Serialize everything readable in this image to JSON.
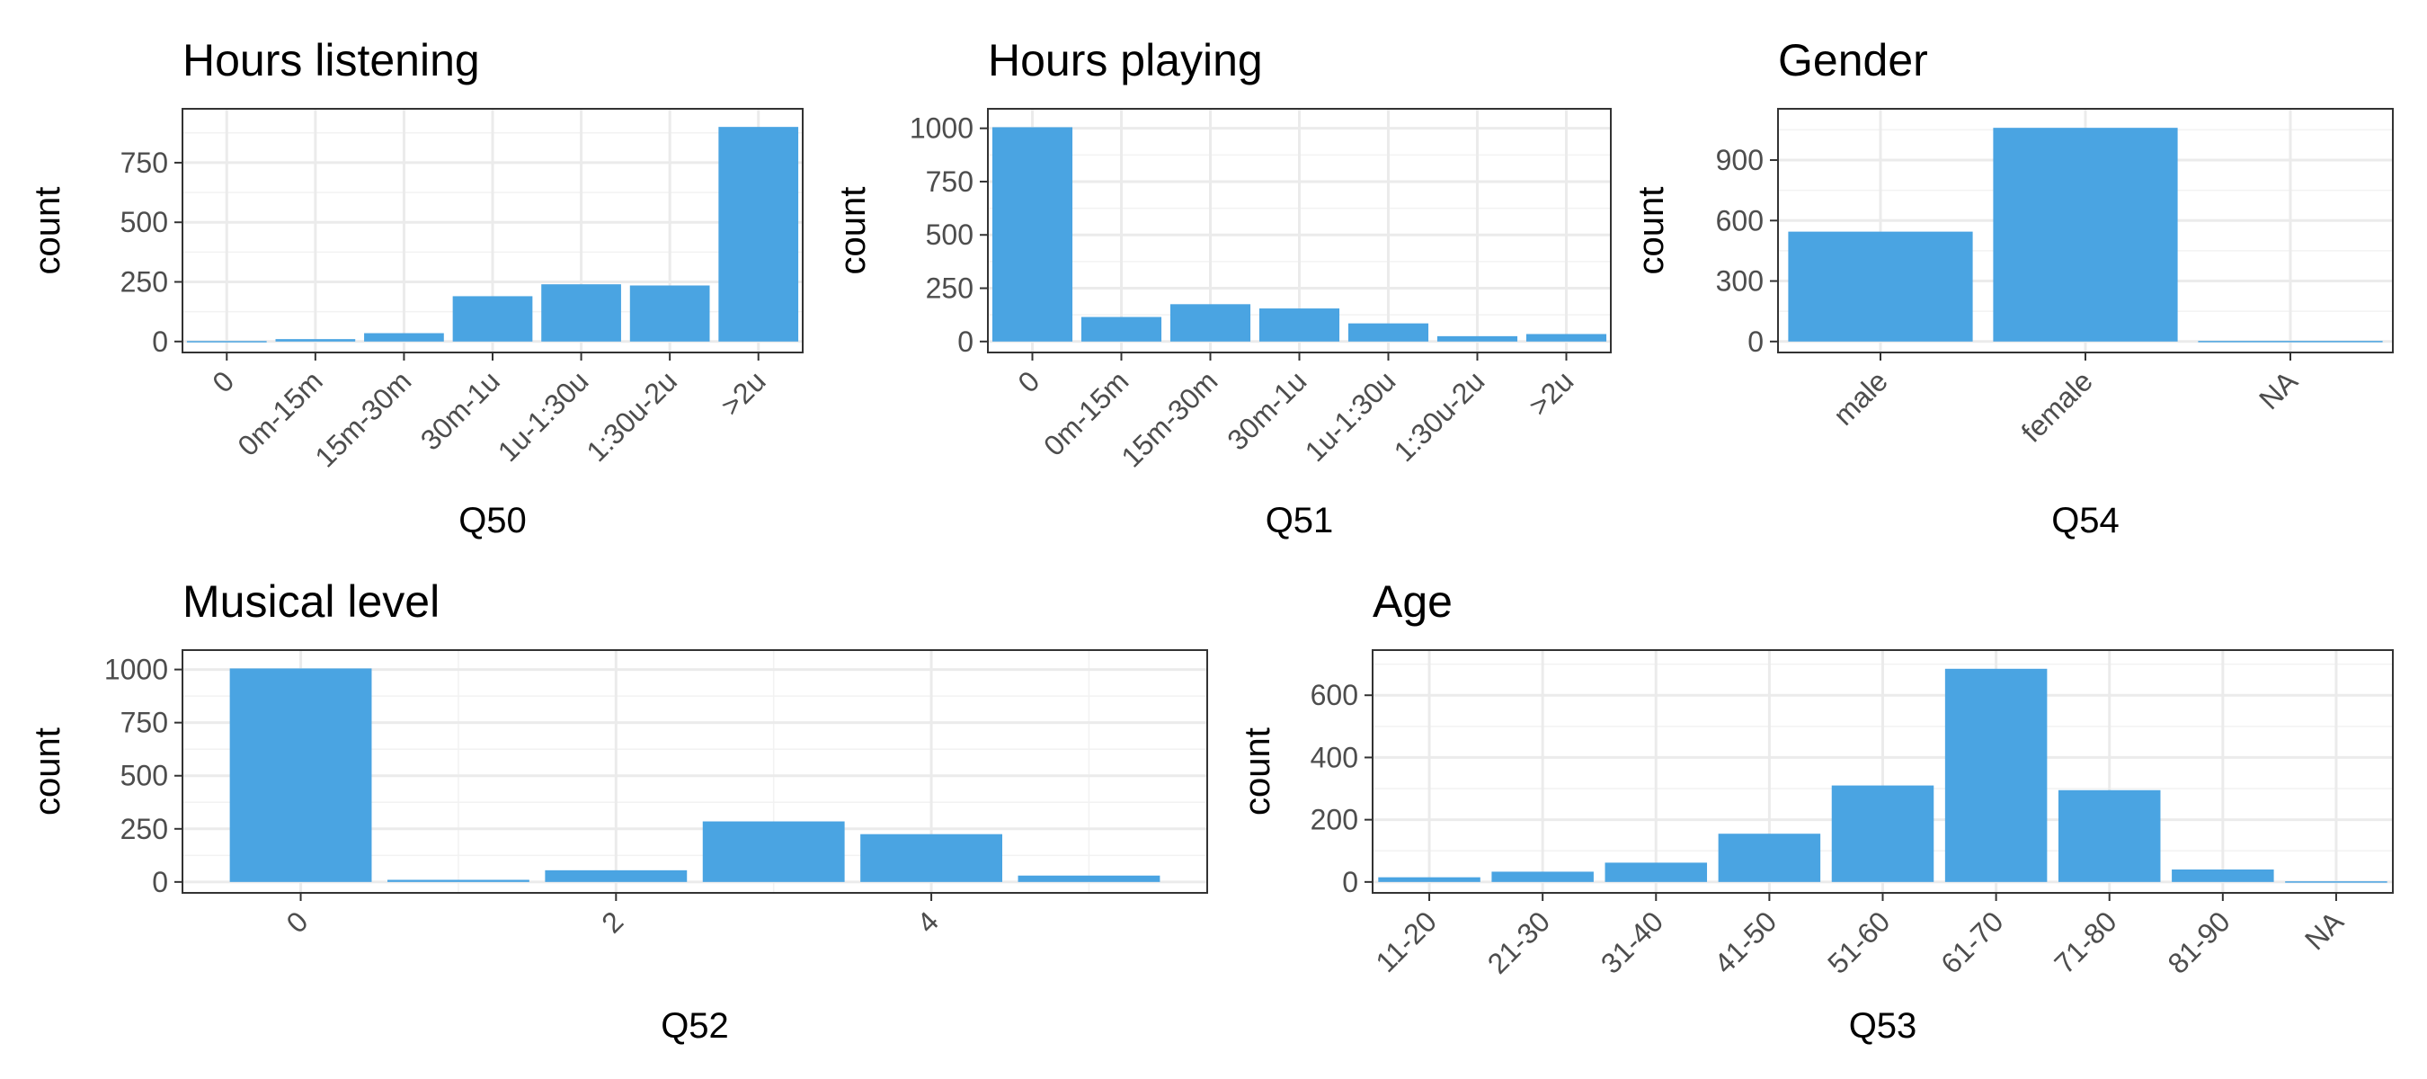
{
  "bar_color": "#4aa4e2",
  "chart_data": [
    {
      "id": "q50",
      "type": "bar",
      "title": "Hours listening",
      "xlabel": "Q50",
      "ylabel": "count",
      "categories": [
        "0",
        "0m-15m",
        "15m-30m",
        "30m-1u",
        "1u-1:30u",
        "1:30u-2u",
        ">2u"
      ],
      "values": [
        2,
        10,
        35,
        190,
        240,
        235,
        900
      ],
      "ylim": [
        0,
        930
      ],
      "yticks": [
        0,
        250,
        500,
        750
      ],
      "xtick_rotation": 45,
      "grid": true
    },
    {
      "id": "q51",
      "type": "bar",
      "title": "Hours playing",
      "xlabel": "Q51",
      "ylabel": "count",
      "categories": [
        "0",
        "0m-15m",
        "15m-30m",
        "30m-1u",
        "1u-1:30u",
        "1:30u-2u",
        ">2u"
      ],
      "values": [
        1005,
        115,
        175,
        155,
        85,
        25,
        35
      ],
      "ylim": [
        0,
        1040
      ],
      "yticks": [
        0,
        250,
        500,
        750,
        1000
      ],
      "xtick_rotation": 45,
      "grid": true
    },
    {
      "id": "q54",
      "type": "bar",
      "title": "Gender",
      "xlabel": "Q54",
      "ylabel": "count",
      "categories": [
        "male",
        "female",
        "NA"
      ],
      "values": [
        545,
        1060,
        3
      ],
      "ylim": [
        0,
        1100
      ],
      "yticks": [
        0,
        300,
        600,
        900
      ],
      "xtick_rotation": 45,
      "grid": true
    },
    {
      "id": "q52",
      "type": "bar",
      "title": "Musical level",
      "xlabel": "Q52",
      "ylabel": "count",
      "x": [
        0,
        1,
        2,
        3,
        4,
        5
      ],
      "values": [
        1005,
        10,
        55,
        285,
        225,
        30
      ],
      "xlim": [
        -0.75,
        5.75
      ],
      "xticks": [
        0,
        2,
        4
      ],
      "ylim": [
        0,
        1040
      ],
      "yticks": [
        0,
        250,
        500,
        750,
        1000
      ],
      "xtick_rotation": 45,
      "grid": true
    },
    {
      "id": "q53",
      "type": "bar",
      "title": "Age",
      "xlabel": "Q53",
      "ylabel": "count",
      "categories": [
        "11-20",
        "21-30",
        "31-40",
        "41-50",
        "51-60",
        "61-70",
        "71-80",
        "81-90",
        "NA"
      ],
      "values": [
        15,
        33,
        62,
        155,
        310,
        685,
        295,
        40,
        2
      ],
      "ylim": [
        0,
        710
      ],
      "yticks": [
        0,
        200,
        400,
        600
      ],
      "xtick_rotation": 45,
      "grid": true
    }
  ]
}
